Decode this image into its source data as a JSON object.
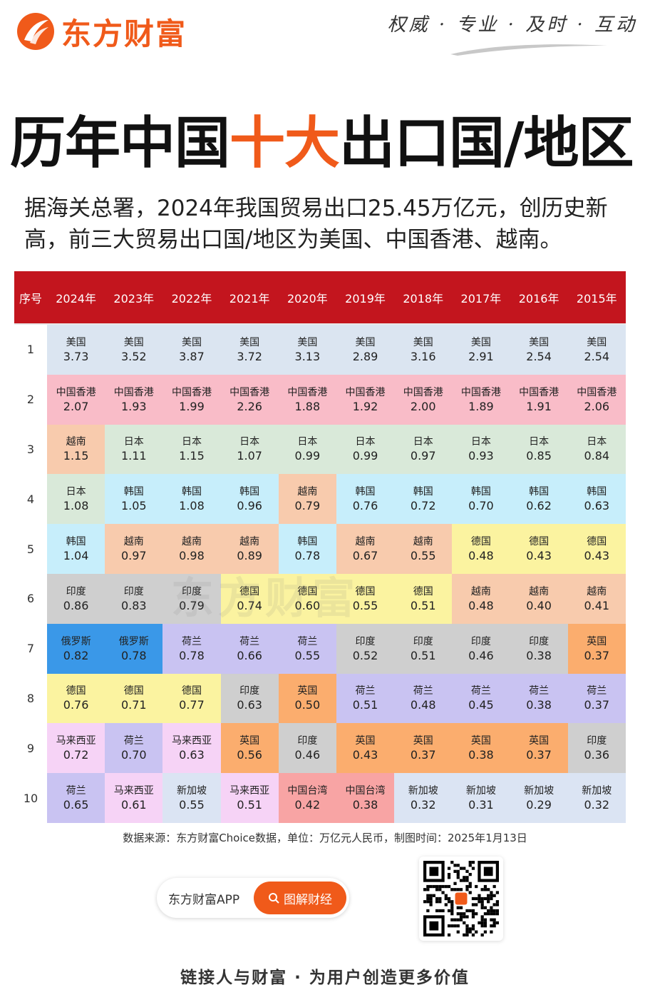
{
  "brand": {
    "name": "东方财富",
    "slogan": "权威 · 专业 · 及时 · 互动",
    "brand_color": "#f05a1a"
  },
  "title": {
    "part1": "历年中国",
    "highlight": "十大",
    "part2": "出口国/地区"
  },
  "intro": "据海关总署，2024年我国贸易出口25.45万亿元，创历史新高，前三大贸易出口国/地区为美国、中国香港、越南。",
  "table": {
    "header_color": "#c3151e",
    "index_header": "序号",
    "years": [
      "2024年",
      "2023年",
      "2022年",
      "2021年",
      "2020年",
      "2019年",
      "2018年",
      "2017年",
      "2016年",
      "2015年"
    ],
    "country_colors": {
      "美国": "#dbe5f1",
      "中国香港": "#f9bcc8",
      "越南": "#f8cbad",
      "日本": "#d9e9d9",
      "韩国": "#c7eefb",
      "印度": "#cfcfcf",
      "德国": "#fbf3a0",
      "俄罗斯": "#3a98e8",
      "荷兰": "#c9c3f2",
      "马来西亚": "#f6d3f6",
      "英国": "#fbad6e",
      "新加坡": "#dbe4f3",
      "中国台湾": "#f8a4a4"
    },
    "rows": [
      {
        "rank": "1",
        "cells": [
          {
            "name": "美国",
            "value": "3.73"
          },
          {
            "name": "美国",
            "value": "3.52"
          },
          {
            "name": "美国",
            "value": "3.87"
          },
          {
            "name": "美国",
            "value": "3.72"
          },
          {
            "name": "美国",
            "value": "3.13"
          },
          {
            "name": "美国",
            "value": "2.89"
          },
          {
            "name": "美国",
            "value": "3.16"
          },
          {
            "name": "美国",
            "value": "2.91"
          },
          {
            "name": "美国",
            "value": "2.54"
          },
          {
            "name": "美国",
            "value": "2.54"
          }
        ]
      },
      {
        "rank": "2",
        "cells": [
          {
            "name": "中国香港",
            "value": "2.07"
          },
          {
            "name": "中国香港",
            "value": "1.93"
          },
          {
            "name": "中国香港",
            "value": "1.99"
          },
          {
            "name": "中国香港",
            "value": "2.26"
          },
          {
            "name": "中国香港",
            "value": "1.88"
          },
          {
            "name": "中国香港",
            "value": "1.92"
          },
          {
            "name": "中国香港",
            "value": "2.00"
          },
          {
            "name": "中国香港",
            "value": "1.89"
          },
          {
            "name": "中国香港",
            "value": "1.91"
          },
          {
            "name": "中国香港",
            "value": "2.06"
          }
        ]
      },
      {
        "rank": "3",
        "cells": [
          {
            "name": "越南",
            "value": "1.15"
          },
          {
            "name": "日本",
            "value": "1.11"
          },
          {
            "name": "日本",
            "value": "1.15"
          },
          {
            "name": "日本",
            "value": "1.07"
          },
          {
            "name": "日本",
            "value": "0.99"
          },
          {
            "name": "日本",
            "value": "0.99"
          },
          {
            "name": "日本",
            "value": "0.97"
          },
          {
            "name": "日本",
            "value": "0.93"
          },
          {
            "name": "日本",
            "value": "0.85"
          },
          {
            "name": "日本",
            "value": "0.84"
          }
        ]
      },
      {
        "rank": "4",
        "cells": [
          {
            "name": "日本",
            "value": "1.08"
          },
          {
            "name": "韩国",
            "value": "1.05"
          },
          {
            "name": "韩国",
            "value": "1.08"
          },
          {
            "name": "韩国",
            "value": "0.96"
          },
          {
            "name": "越南",
            "value": "0.79"
          },
          {
            "name": "韩国",
            "value": "0.76"
          },
          {
            "name": "韩国",
            "value": "0.72"
          },
          {
            "name": "韩国",
            "value": "0.70"
          },
          {
            "name": "韩国",
            "value": "0.62"
          },
          {
            "name": "韩国",
            "value": "0.63"
          }
        ]
      },
      {
        "rank": "5",
        "cells": [
          {
            "name": "韩国",
            "value": "1.04"
          },
          {
            "name": "越南",
            "value": "0.97"
          },
          {
            "name": "越南",
            "value": "0.98"
          },
          {
            "name": "越南",
            "value": "0.89"
          },
          {
            "name": "韩国",
            "value": "0.78"
          },
          {
            "name": "越南",
            "value": "0.67"
          },
          {
            "name": "越南",
            "value": "0.55"
          },
          {
            "name": "德国",
            "value": "0.48"
          },
          {
            "name": "德国",
            "value": "0.43"
          },
          {
            "name": "德国",
            "value": "0.43"
          }
        ]
      },
      {
        "rank": "6",
        "cells": [
          {
            "name": "印度",
            "value": "0.86"
          },
          {
            "name": "印度",
            "value": "0.83"
          },
          {
            "name": "印度",
            "value": "0.79"
          },
          {
            "name": "德国",
            "value": "0.74"
          },
          {
            "name": "德国",
            "value": "0.60"
          },
          {
            "name": "德国",
            "value": "0.55"
          },
          {
            "name": "德国",
            "value": "0.51"
          },
          {
            "name": "越南",
            "value": "0.48"
          },
          {
            "name": "越南",
            "value": "0.40"
          },
          {
            "name": "越南",
            "value": "0.41"
          }
        ]
      },
      {
        "rank": "7",
        "cells": [
          {
            "name": "俄罗斯",
            "value": "0.82"
          },
          {
            "name": "俄罗斯",
            "value": "0.78"
          },
          {
            "name": "荷兰",
            "value": "0.78"
          },
          {
            "name": "荷兰",
            "value": "0.66"
          },
          {
            "name": "荷兰",
            "value": "0.55"
          },
          {
            "name": "印度",
            "value": "0.52"
          },
          {
            "name": "印度",
            "value": "0.51"
          },
          {
            "name": "印度",
            "value": "0.46"
          },
          {
            "name": "印度",
            "value": "0.38"
          },
          {
            "name": "英国",
            "value": "0.37"
          }
        ]
      },
      {
        "rank": "8",
        "cells": [
          {
            "name": "德国",
            "value": "0.76"
          },
          {
            "name": "德国",
            "value": "0.71"
          },
          {
            "name": "德国",
            "value": "0.77"
          },
          {
            "name": "印度",
            "value": "0.63"
          },
          {
            "name": "英国",
            "value": "0.50"
          },
          {
            "name": "荷兰",
            "value": "0.51"
          },
          {
            "name": "荷兰",
            "value": "0.48"
          },
          {
            "name": "荷兰",
            "value": "0.45"
          },
          {
            "name": "荷兰",
            "value": "0.38"
          },
          {
            "name": "荷兰",
            "value": "0.37"
          }
        ]
      },
      {
        "rank": "9",
        "cells": [
          {
            "name": "马来西亚",
            "value": "0.72"
          },
          {
            "name": "荷兰",
            "value": "0.70"
          },
          {
            "name": "马来西亚",
            "value": "0.63"
          },
          {
            "name": "英国",
            "value": "0.56"
          },
          {
            "name": "印度",
            "value": "0.46"
          },
          {
            "name": "英国",
            "value": "0.43"
          },
          {
            "name": "英国",
            "value": "0.37"
          },
          {
            "name": "英国",
            "value": "0.38"
          },
          {
            "name": "英国",
            "value": "0.37"
          },
          {
            "name": "印度",
            "value": "0.36"
          }
        ]
      },
      {
        "rank": "10",
        "cells": [
          {
            "name": "荷兰",
            "value": "0.65"
          },
          {
            "name": "马来西亚",
            "value": "0.61"
          },
          {
            "name": "新加坡",
            "value": "0.55"
          },
          {
            "name": "马来西亚",
            "value": "0.51"
          },
          {
            "name": "中国台湾",
            "value": "0.42"
          },
          {
            "name": "中国台湾",
            "value": "0.38"
          },
          {
            "name": "新加坡",
            "value": "0.32"
          },
          {
            "name": "新加坡",
            "value": "0.31"
          },
          {
            "name": "新加坡",
            "value": "0.29"
          },
          {
            "name": "新加坡",
            "value": "0.32"
          }
        ]
      }
    ]
  },
  "watermark": "东方财富",
  "source": "数据来源：东方财富Choice数据，单位：万亿元人民币，制图时间：2025年1月13日",
  "app_pill": {
    "label": "东方财富APP",
    "button": "图解财经",
    "search_icon": "search-icon"
  },
  "qr_icon": "qr-code",
  "footer": "链接人与财富 · 为用户创造更多价值"
}
